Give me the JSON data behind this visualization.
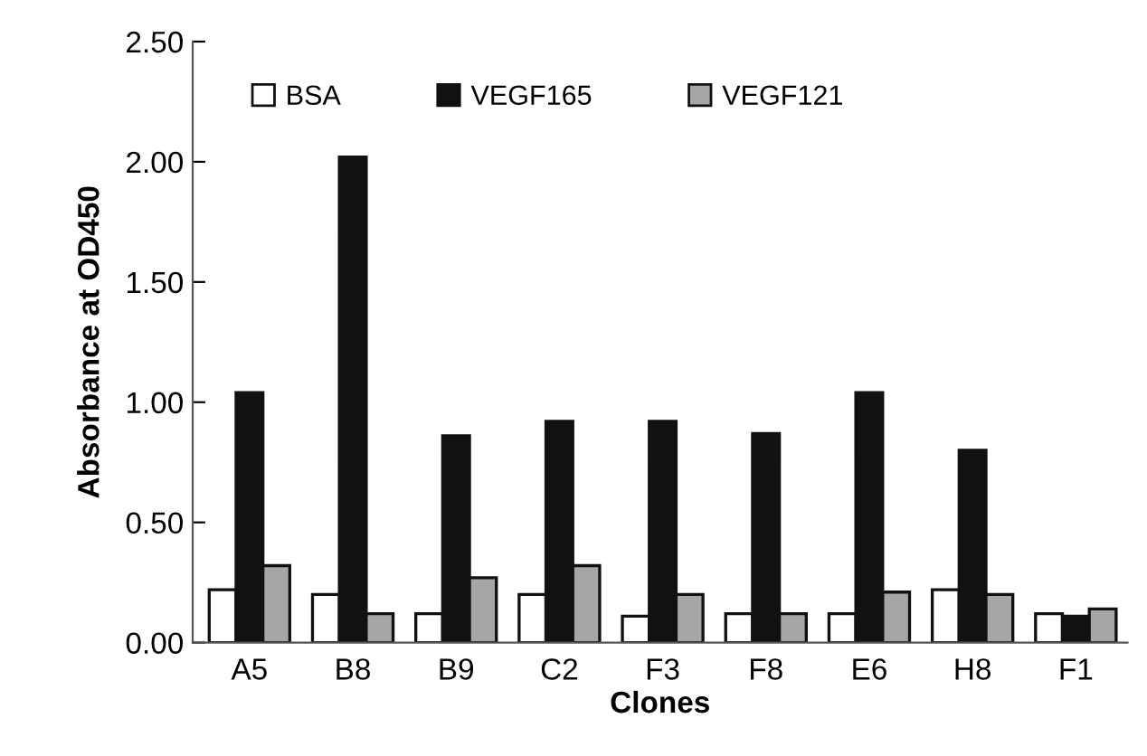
{
  "chart_data": {
    "type": "bar",
    "xlabel": "Clones",
    "ylabel": "Absorbance at OD450",
    "categories": [
      "A5",
      "B8",
      "B9",
      "C2",
      "F3",
      "F8",
      "E6",
      "H8",
      "F1"
    ],
    "series": [
      {
        "name": "BSA",
        "color": "#ffffff",
        "values": [
          0.22,
          0.2,
          0.12,
          0.2,
          0.11,
          0.12,
          0.12,
          0.22,
          0.12
        ]
      },
      {
        "name": "VEGF165",
        "color": "#111111",
        "values": [
          1.04,
          2.02,
          0.86,
          0.92,
          0.92,
          0.87,
          1.04,
          0.8,
          0.11
        ]
      },
      {
        "name": "VEGF121",
        "color": "#a6a6a6",
        "values": [
          0.32,
          0.12,
          0.27,
          0.32,
          0.2,
          0.12,
          0.21,
          0.2,
          0.14
        ]
      }
    ],
    "ylim": [
      0,
      2.5
    ],
    "yticks": [
      {
        "value": 0,
        "label": "0.00"
      },
      {
        "value": 0.5,
        "label": "0.50"
      },
      {
        "value": 1,
        "label": "1.00"
      },
      {
        "value": 1.5,
        "label": "1.50"
      },
      {
        "value": 2,
        "label": "2.00"
      },
      {
        "value": 2.5,
        "label": "2.50"
      }
    ],
    "legend": "top",
    "grid": false
  }
}
